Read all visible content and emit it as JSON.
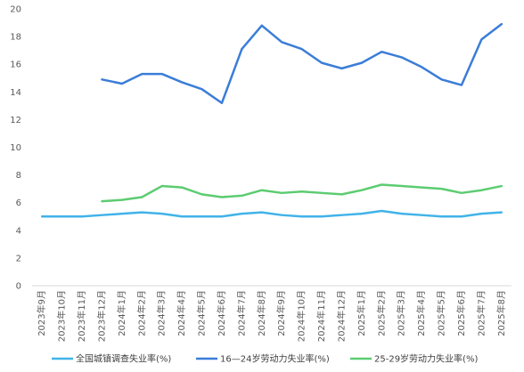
{
  "chart_data": {
    "type": "line",
    "title": "",
    "xlabel": "",
    "ylabel": "",
    "ylim": [
      0,
      20
    ],
    "y_ticks": [
      "0",
      "2",
      "4",
      "6",
      "8",
      "10",
      "12",
      "14",
      "16",
      "18",
      "20"
    ],
    "grid": false,
    "legend_position": "bottom",
    "categories": [
      "2023年9月",
      "2023年10月",
      "2023年11月",
      "2023年12月",
      "2024年1月",
      "2024年2月",
      "2024年3月",
      "2024年4月",
      "2024年5月",
      "2024年6月",
      "2024年7月",
      "2024年8月",
      "2024年9月",
      "2024年10月",
      "2024年11月",
      "2024年12月",
      "2025年1月",
      "2025年2月",
      "2025年3月",
      "2025年4月",
      "2025年5月",
      "2025年6月",
      "2025年7月",
      "2025年8月"
    ],
    "series": [
      {
        "name": "全国城镇调查失业率(%)",
        "color": "#41b3e8",
        "values": [
          5.0,
          5.0,
          5.0,
          5.1,
          5.2,
          5.3,
          5.2,
          5.0,
          5.0,
          5.0,
          5.2,
          5.3,
          5.1,
          5.0,
          5.0,
          5.1,
          5.2,
          5.4,
          5.2,
          5.1,
          5.0,
          5.0,
          5.2,
          5.3
        ]
      },
      {
        "name": "16—24岁劳动力失业率(%)",
        "color": "#3b7dd8",
        "values": [
          null,
          null,
          null,
          14.9,
          14.6,
          15.3,
          15.3,
          14.7,
          14.2,
          13.2,
          17.1,
          18.8,
          17.6,
          17.1,
          16.1,
          15.7,
          16.1,
          16.9,
          16.5,
          15.8,
          14.9,
          14.5,
          17.8,
          18.9
        ]
      },
      {
        "name": "25-29岁劳动力失业率(%)",
        "color": "#5ccc71",
        "values": [
          null,
          null,
          null,
          6.1,
          6.2,
          6.4,
          7.2,
          7.1,
          6.6,
          6.4,
          6.5,
          6.9,
          6.7,
          6.8,
          6.7,
          6.6,
          6.9,
          7.3,
          7.2,
          7.1,
          7.0,
          6.7,
          6.9,
          7.2
        ]
      }
    ]
  }
}
